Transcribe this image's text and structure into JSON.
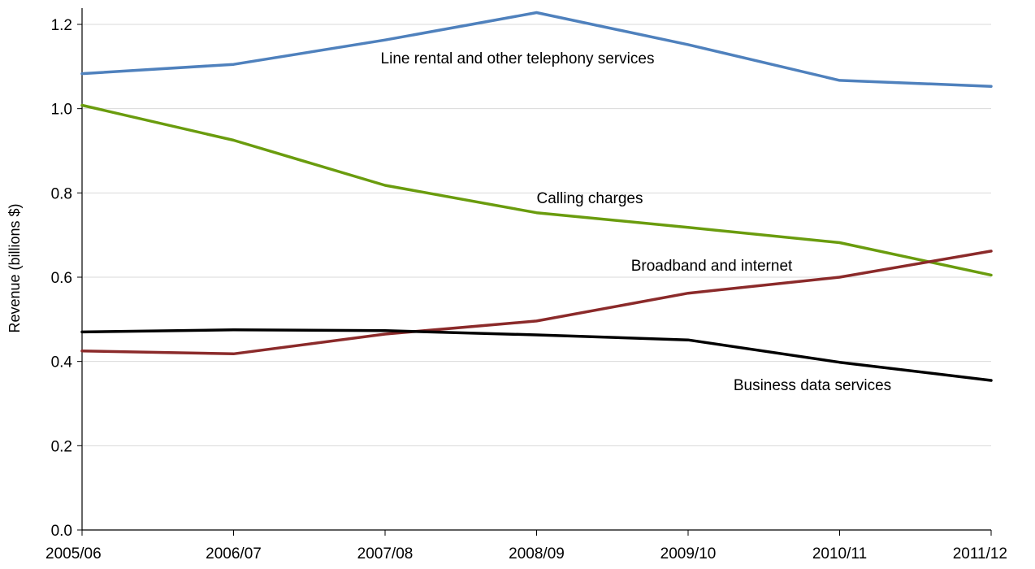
{
  "chart_data": {
    "type": "line",
    "title": "",
    "xlabel": "",
    "ylabel": "Revenue (billions $)",
    "ylim": [
      0,
      1.2
    ],
    "yticks": [
      "0.0",
      "0.2",
      "0.4",
      "0.6",
      "0.8",
      "1.0",
      "1.2"
    ],
    "categories": [
      "2005/06",
      "2006/07",
      "2007/08",
      "2008/09",
      "2009/10",
      "2010/11",
      "2011/12"
    ],
    "grid": "horizontal",
    "legend": "inline-labels",
    "series": [
      {
        "name": "Line rental and other telephony services",
        "color": "#4f81bd",
        "values": [
          1.083,
          1.105,
          1.163,
          1.228,
          1.152,
          1.067,
          1.053
        ]
      },
      {
        "name": "Calling charges",
        "color": "#6a9c0e",
        "values": [
          1.008,
          0.925,
          0.818,
          0.753,
          0.718,
          0.682,
          0.605
        ]
      },
      {
        "name": "Broadband and internet",
        "color": "#8b2a2a",
        "values": [
          0.425,
          0.418,
          0.465,
          0.496,
          0.562,
          0.6,
          0.662
        ]
      },
      {
        "name": "Business data services",
        "color": "#000000",
        "values": [
          0.47,
          0.475,
          0.473,
          0.463,
          0.451,
          0.398,
          0.355
        ]
      }
    ]
  }
}
